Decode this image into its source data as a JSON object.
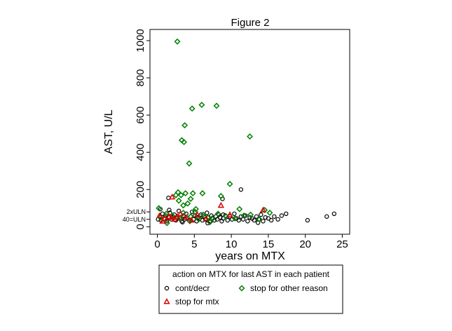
{
  "chart_data": {
    "type": "scatter",
    "title": "Figure 2",
    "xlabel": "years on MTX",
    "ylabel": "AST, U/L",
    "xlim": [
      -1,
      26
    ],
    "ylim": [
      -40,
      1060
    ],
    "xticks": [
      0,
      5,
      10,
      15,
      20,
      25
    ],
    "yticks": [
      0,
      200,
      400,
      600,
      800,
      1000
    ],
    "reference_lines": [
      {
        "label": "2xULN",
        "value": 80
      },
      {
        "label": "40=ULN",
        "value": 40
      }
    ],
    "legend": {
      "title": "action on MTX for last AST in each patient",
      "position": "bottom"
    },
    "series": [
      {
        "name": "cont/decr",
        "marker": "circle",
        "color": "#000000",
        "points": [
          [
            0.1,
            40
          ],
          [
            0.3,
            55
          ],
          [
            0.5,
            35
          ],
          [
            0.7,
            70
          ],
          [
            0.9,
            45
          ],
          [
            1.1,
            60
          ],
          [
            1.3,
            30
          ],
          [
            1.5,
            50
          ],
          [
            1.7,
            75
          ],
          [
            1.9,
            40
          ],
          [
            2.1,
            55
          ],
          [
            2.3,
            65
          ],
          [
            2.5,
            35
          ],
          [
            2.7,
            45
          ],
          [
            2.9,
            85
          ],
          [
            3.1,
            50
          ],
          [
            3.3,
            30
          ],
          [
            3.5,
            60
          ],
          [
            3.7,
            40
          ],
          [
            3.9,
            70
          ],
          [
            4.1,
            45
          ],
          [
            4.3,
            35
          ],
          [
            4.5,
            55
          ],
          [
            4.7,
            80
          ],
          [
            4.9,
            40
          ],
          [
            5.1,
            60
          ],
          [
            5.3,
            30
          ],
          [
            5.5,
            50
          ],
          [
            5.7,
            45
          ],
          [
            5.9,
            65
          ],
          [
            6.1,
            35
          ],
          [
            6.3,
            55
          ],
          [
            6.5,
            40
          ],
          [
            6.7,
            75
          ],
          [
            6.9,
            50
          ],
          [
            7.1,
            30
          ],
          [
            7.3,
            60
          ],
          [
            7.5,
            45
          ],
          [
            7.7,
            35
          ],
          [
            7.9,
            55
          ],
          [
            8.1,
            40
          ],
          [
            8.3,
            65
          ],
          [
            8.5,
            50
          ],
          [
            8.7,
            30
          ],
          [
            8.9,
            45
          ],
          [
            9.2,
            60
          ],
          [
            9.5,
            35
          ],
          [
            9.8,
            55
          ],
          [
            10.1,
            40
          ],
          [
            10.4,
            70
          ],
          [
            10.7,
            45
          ],
          [
            11.0,
            35
          ],
          [
            11.3,
            55
          ],
          [
            11.6,
            40
          ],
          [
            11.9,
            60
          ],
          [
            12.2,
            30
          ],
          [
            12.5,
            50
          ],
          [
            12.8,
            45
          ],
          [
            13.1,
            35
          ],
          [
            13.4,
            55
          ],
          [
            13.7,
            40
          ],
          [
            14.0,
            65
          ],
          [
            14.3,
            30
          ],
          [
            14.6,
            50
          ],
          [
            15.0,
            45
          ],
          [
            15.4,
            35
          ],
          [
            15.8,
            55
          ],
          [
            16.3,
            40
          ],
          [
            16.8,
            60
          ],
          [
            17.4,
            70
          ],
          [
            0.4,
            95
          ],
          [
            1.6,
            90
          ],
          [
            3.4,
            25
          ],
          [
            6.8,
            20
          ],
          [
            13.6,
            22
          ],
          [
            1.5,
            155
          ],
          [
            8.8,
            150
          ],
          [
            11.3,
            200
          ],
          [
            8.9,
            65
          ],
          [
            20.3,
            35
          ],
          [
            22.9,
            55
          ],
          [
            23.9,
            70
          ]
        ]
      },
      {
        "name": "stop for other reason",
        "marker": "diamond",
        "color": "#008000",
        "points": [
          [
            2.7,
            995
          ],
          [
            3.3,
            465
          ],
          [
            3.7,
            545
          ],
          [
            4.7,
            635
          ],
          [
            6.0,
            655
          ],
          [
            8.0,
            650
          ],
          [
            4.3,
            340
          ],
          [
            3.6,
            455
          ],
          [
            12.5,
            485
          ],
          [
            9.8,
            230
          ],
          [
            6.1,
            180
          ],
          [
            3.8,
            180
          ],
          [
            4.8,
            180
          ],
          [
            4.5,
            150
          ],
          [
            2.8,
            185
          ],
          [
            2.5,
            170
          ],
          [
            3.2,
            170
          ],
          [
            8.6,
            165
          ],
          [
            2.9,
            140
          ],
          [
            3.5,
            115
          ],
          [
            4.1,
            125
          ],
          [
            5.2,
            95
          ],
          [
            0.2,
            100
          ],
          [
            11.1,
            95
          ],
          [
            14.5,
            90
          ],
          [
            0.4,
            50
          ],
          [
            1.2,
            70
          ],
          [
            2.0,
            60
          ],
          [
            3.0,
            45
          ],
          [
            3.5,
            75
          ],
          [
            4.5,
            55
          ],
          [
            5.1,
            80
          ],
          [
            5.6,
            40
          ],
          [
            6.2,
            65
          ],
          [
            6.8,
            50
          ],
          [
            7.4,
            45
          ],
          [
            8.2,
            70
          ],
          [
            9.3,
            55
          ],
          [
            10.5,
            45
          ],
          [
            11.7,
            60
          ],
          [
            12.6,
            65
          ],
          [
            13.8,
            40
          ],
          [
            15.2,
            75
          ],
          [
            1.3,
            20
          ],
          [
            4.4,
            30
          ],
          [
            7.1,
            25
          ]
        ]
      },
      {
        "name": "stop for mtx",
        "marker": "triangle",
        "color": "#dd0000",
        "points": [
          [
            2.0,
            160
          ],
          [
            8.6,
            115
          ],
          [
            9.8,
            65
          ],
          [
            14.3,
            90
          ],
          [
            0.3,
            60
          ],
          [
            1.0,
            45
          ],
          [
            1.6,
            55
          ],
          [
            2.3,
            40
          ],
          [
            3.1,
            70
          ],
          [
            3.9,
            50
          ],
          [
            4.6,
            35
          ],
          [
            5.4,
            65
          ],
          [
            6.6,
            45
          ],
          [
            0.7,
            30
          ],
          [
            1.9,
            50
          ],
          [
            2.7,
            55
          ]
        ]
      }
    ]
  }
}
